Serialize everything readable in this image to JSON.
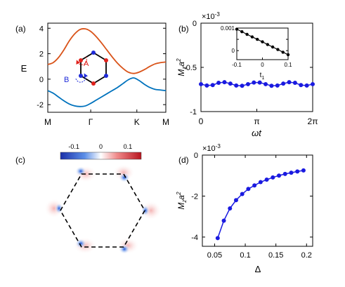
{
  "colors": {
    "upper_band": "#D95319",
    "lower_band": "#0072BD",
    "point_a": "#E0221C",
    "point_b": "#1F2BD9",
    "magnetization": "#1A1AE0",
    "inset_series": "#000000"
  },
  "chart_data": [
    {
      "panel": "(a)",
      "type": "line",
      "ylabel": "E",
      "ylim": [
        -2.6,
        4.4
      ],
      "yticks": [
        "-2",
        "0",
        "2",
        "4"
      ],
      "xticks": [
        "M",
        "Γ",
        "K",
        "M"
      ],
      "x": [
        0,
        0.25,
        0.5,
        0.75,
        1,
        1.25,
        1.5,
        1.75,
        2,
        2.25,
        2.5,
        2.75,
        3,
        3.25,
        3.5,
        3.75,
        4,
        4.25,
        4.5,
        4.75,
        5,
        5.25,
        5.5
      ],
      "series": [
        {
          "values": [
            1.15,
            1.3,
            1.7,
            2.3,
            3.0,
            3.55,
            3.9,
            3.95,
            3.75,
            3.35,
            2.85,
            2.3,
            1.75,
            1.25,
            0.85,
            0.55,
            0.45,
            0.55,
            0.75,
            1.0,
            1.2,
            1.3,
            1.35
          ]
        },
        {
          "values": [
            -0.9,
            -1.1,
            -1.4,
            -1.7,
            -1.95,
            -2.1,
            -2.15,
            -2.1,
            -1.9,
            -1.65,
            -1.4,
            -1.15,
            -0.9,
            -0.65,
            -0.35,
            -0.05,
            0.1,
            -0.1,
            -0.4,
            -0.65,
            -0.8,
            -0.85,
            -0.9
          ]
        }
      ],
      "annotations": [
        "A",
        "B"
      ]
    },
    {
      "panel": "(b)",
      "type": "line",
      "xlabel": "ωt",
      "ylabel": "M_z a^2",
      "yscale_label": "×10",
      "yscale_exp": "-3",
      "xlim": [
        0,
        6.2832
      ],
      "ylim": [
        -1,
        0
      ],
      "yticks": [
        "-1",
        "-0.5",
        "0"
      ],
      "xticks": [
        "0",
        "π",
        "2π"
      ],
      "series": [
        {
          "x": [
            0,
            0.3307,
            0.6614,
            0.992,
            1.3227,
            1.6534,
            1.9841,
            2.3148,
            2.6455,
            2.9761,
            3.3068,
            3.6375,
            3.9682,
            4.2989,
            4.6296,
            4.9602,
            5.2909,
            5.6216,
            5.9523,
            6.2832
          ],
          "values": [
            -0.69,
            -0.705,
            -0.7,
            -0.675,
            -0.668,
            -0.684,
            -0.705,
            -0.708,
            -0.69,
            -0.672,
            -0.672,
            -0.69,
            -0.708,
            -0.705,
            -0.684,
            -0.668,
            -0.675,
            -0.7,
            -0.705,
            -0.69
          ]
        }
      ],
      "inset": {
        "type": "line",
        "xlabel": "t_1",
        "xlim": [
          -0.1,
          0.1
        ],
        "ylim": [
          -0.0004,
          0.001
        ],
        "xticks": [
          "-0.1",
          "0",
          "0.1"
        ],
        "yticks": [
          "0.001",
          "0.0005",
          "0"
        ],
        "x": [
          -0.1,
          -0.08,
          -0.06,
          -0.04,
          -0.02,
          0,
          0.02,
          0.04,
          0.06,
          0.08,
          0.1
        ],
        "values": [
          0.00095,
          0.00084,
          0.00072,
          0.00061,
          0.0005,
          0.00039,
          0.00027,
          0.00016,
          5e-05,
          -7e-05,
          -0.00018
        ]
      }
    },
    {
      "panel": "(c)",
      "type": "heatmap",
      "colorbar_ticks": [
        "-0.1",
        "0",
        "0.1"
      ],
      "clim": [
        -0.15,
        0.15
      ]
    },
    {
      "panel": "(d)",
      "type": "line",
      "xlabel": "Δ",
      "ylabel": "M_z a^2",
      "yscale_label": "×10",
      "yscale_exp": "-3",
      "xlim": [
        0.03,
        0.21
      ],
      "ylim": [
        -4.45,
        0
      ],
      "xticks": [
        "0.05",
        "0.1",
        "0.15",
        "0.2"
      ],
      "yticks": [
        "-4",
        "-2",
        "0"
      ],
      "series": [
        {
          "x": [
            0.055,
            0.065,
            0.075,
            0.085,
            0.095,
            0.105,
            0.115,
            0.125,
            0.135,
            0.145,
            0.155,
            0.165,
            0.175,
            0.185,
            0.195
          ],
          "values": [
            -4.05,
            -3.2,
            -2.6,
            -2.2,
            -1.9,
            -1.65,
            -1.48,
            -1.32,
            -1.2,
            -1.09,
            -1.0,
            -0.92,
            -0.86,
            -0.8,
            -0.75
          ]
        }
      ]
    }
  ]
}
